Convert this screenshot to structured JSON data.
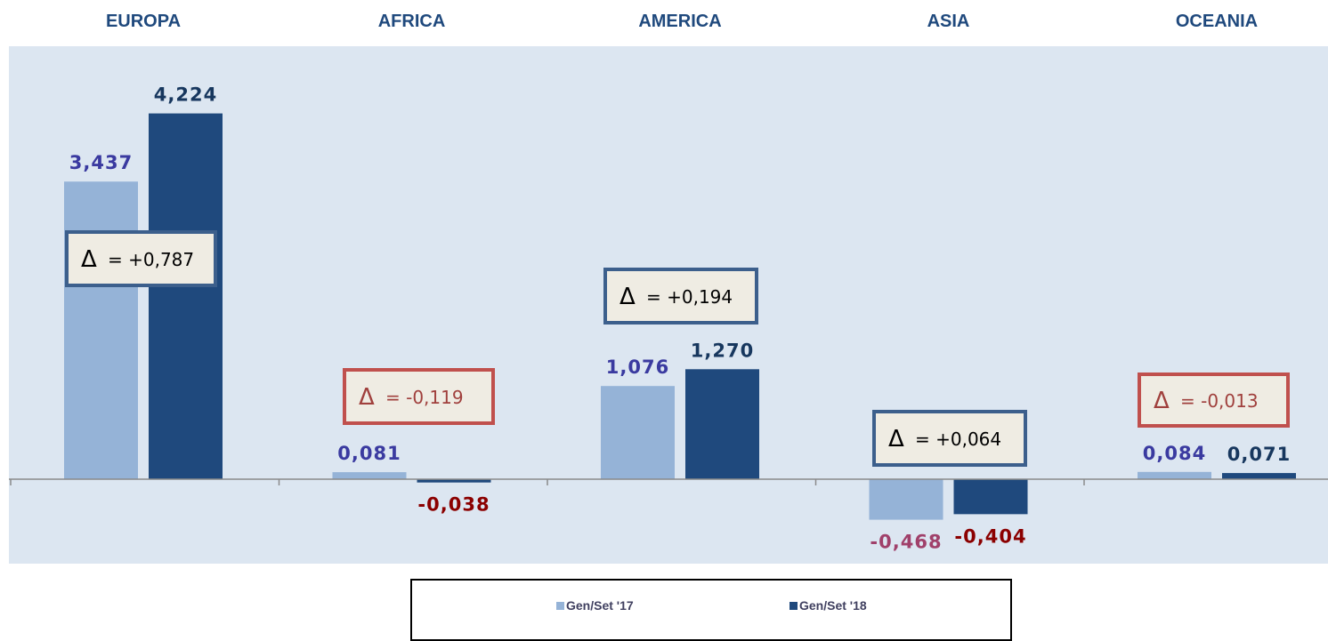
{
  "chart_data": {
    "type": "bar",
    "categories": [
      "EUROPA",
      "AFRICA",
      "AMERICA",
      "ASIA",
      "OCEANIA"
    ],
    "series": [
      {
        "name": "Gen/Set '17",
        "values": [
          3.437,
          0.081,
          1.076,
          -0.468,
          0.084
        ],
        "labels": [
          "3,437",
          "0,081",
          "1,076",
          "-0,468",
          "0,084"
        ]
      },
      {
        "name": "Gen/Set '18",
        "values": [
          4.224,
          -0.038,
          1.27,
          -0.404,
          0.071
        ],
        "labels": [
          "4,224",
          "-0,038",
          "1,270",
          "-0,404",
          "0,071"
        ]
      }
    ],
    "deltas": [
      {
        "symbol": "Δ",
        "text": "= +0,787",
        "sign": "positive"
      },
      {
        "symbol": "Δ",
        "text": "= -0,119",
        "sign": "negative"
      },
      {
        "symbol": "Δ",
        "text": "= +0,194",
        "sign": "positive"
      },
      {
        "symbol": "Δ",
        "text": "= +0,064",
        "sign": "positive"
      },
      {
        "symbol": "Δ",
        "text": "= -0,013",
        "sign": "negative"
      }
    ],
    "colors": {
      "plot_bg": "#dce6f1",
      "series1": "#95b3d7",
      "series2": "#1f497d",
      "category_text": "#1f497d",
      "label_pos1": "#3a3aa0",
      "label_pos2": "#17375e",
      "label_neg1": "#a0406a",
      "label_neg2": "#8b0000",
      "delta_pos_border": "#3c5f8c",
      "delta_neg_border": "#c0504d",
      "delta_pos_text": "#000000",
      "delta_neg_text": "#a0403d",
      "delta_fill": "#efece3"
    },
    "legend_position": "bottom",
    "grid": false
  }
}
